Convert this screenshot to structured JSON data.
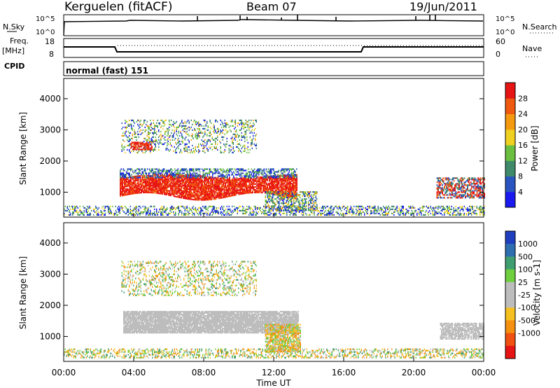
{
  "header": {
    "radar": "Kerguelen (fitACF)",
    "beam": "Beam 07",
    "date": "19/Jun/2011"
  },
  "sky_panel": {
    "left_label": "N.Sky",
    "right_label": "N.Search",
    "ticks_left": [
      "10^5",
      "10^0"
    ],
    "ticks_right": [
      "10^5",
      "10^0"
    ]
  },
  "freq_panel": {
    "left_label_1": "Freq.",
    "left_label_2": "[MHz]",
    "right_label": "Nave",
    "ticks_left": [
      "18",
      "8"
    ],
    "ticks_right": [
      "60",
      "0"
    ]
  },
  "cpid": {
    "label": "CPID",
    "value": "normal (fast) 151"
  },
  "chart_data": [
    {
      "type": "heatmap",
      "name": "power",
      "ylabel": "Slant Range [km]",
      "yticks": [
        "1000",
        "2000",
        "3000",
        "4000"
      ],
      "ylim": [
        200,
        4650
      ],
      "colorbar_label": "Power [dB]",
      "colorbar_ticks": [
        "4",
        "8",
        "12",
        "16",
        "20",
        "24",
        "28"
      ],
      "colorbar_colors": [
        "#1a1af0",
        "#2a55c0",
        "#3f8a6a",
        "#6abf40",
        "#f0d020",
        "#f59a10",
        "#f05a10",
        "#e61414"
      ]
    },
    {
      "type": "heatmap",
      "name": "velocity",
      "ylabel": "Slant Range [km]",
      "yticks": [
        "1000",
        "2000",
        "3000",
        "4000"
      ],
      "ylim": [
        200,
        4650
      ],
      "colorbar_label": "Velocity [m s-1]",
      "colorbar_ticks": [
        "1000",
        "500",
        "100",
        "25",
        "-25",
        "-100",
        "-500",
        "-1000"
      ],
      "colorbar_colors": [
        "#1f3fbf",
        "#2f6fb0",
        "#3f9f70",
        "#6fcf3f",
        "#bdbdbd",
        "#bdbdbd",
        "#f5c020",
        "#f59010",
        "#f05010",
        "#e61414"
      ]
    }
  ],
  "xaxis": {
    "label": "Time UT",
    "ticks": [
      "00:00",
      "04:00",
      "08:00",
      "12:00",
      "16:00",
      "20:00",
      "00:00"
    ]
  },
  "colors": {
    "scatter_gray": "#bdbdbd",
    "power_red": "#e61414",
    "power_orange": "#f05a10",
    "velocity_orange": "#f5a020"
  }
}
